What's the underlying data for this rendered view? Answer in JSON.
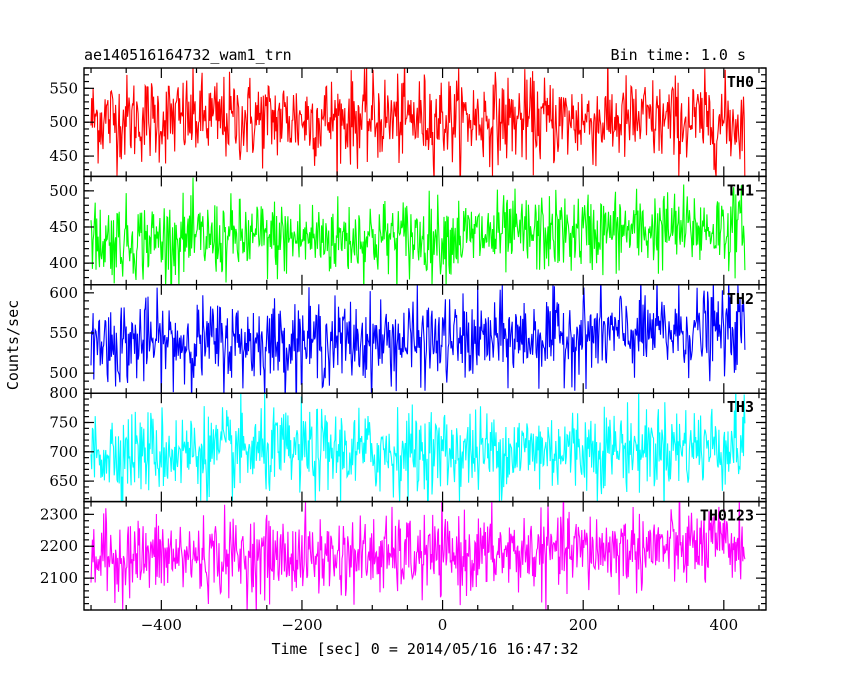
{
  "header": {
    "title": "ae140516164732_wam1_trn",
    "bin_time": "Bin time: 1.0 s"
  },
  "chart_data": {
    "type": "line",
    "xlabel": "Time [sec] 0 = 2014/05/16 16:47:32",
    "ylabel": "Counts/sec",
    "xlim": [
      -510,
      460
    ],
    "data_x_range": [
      -500,
      430
    ],
    "x_ticks": [
      -400,
      -200,
      0,
      200,
      400
    ],
    "grid": false,
    "legend": "none",
    "panels": [
      {
        "name": "TH0",
        "color": "#ff0000",
        "ylim": [
          420,
          580
        ],
        "y_ticks": [
          450,
          500,
          550
        ],
        "mean": [
          [
            -500,
            505
          ],
          [
            0,
            505
          ],
          [
            430,
            500
          ]
        ],
        "spread": 32
      },
      {
        "name": "TH1",
        "color": "#00ff00",
        "ylim": [
          370,
          520
        ],
        "y_ticks": [
          400,
          450,
          500
        ],
        "mean": [
          [
            -500,
            432
          ],
          [
            0,
            436
          ],
          [
            430,
            450
          ]
        ],
        "spread": 27
      },
      {
        "name": "TH2",
        "color": "#0000ff",
        "ylim": [
          475,
          610
        ],
        "y_ticks": [
          500,
          550,
          600
        ],
        "mean": [
          [
            -500,
            538
          ],
          [
            0,
            540
          ],
          [
            430,
            555
          ]
        ],
        "spread": 26
      },
      {
        "name": "TH3",
        "color": "#00ffff",
        "ylim": [
          615,
          800
        ],
        "y_ticks": [
          650,
          700,
          750,
          800
        ],
        "mean": [
          [
            -500,
            700
          ],
          [
            0,
            700
          ],
          [
            430,
            712
          ]
        ],
        "spread": 36
      },
      {
        "name": "TH0123",
        "color": "#ff00ff",
        "ylim": [
          2000,
          2340
        ],
        "y_ticks": [
          2100,
          2200,
          2300
        ],
        "mean": [
          [
            -500,
            2165
          ],
          [
            0,
            2170
          ],
          [
            430,
            2205
          ]
        ],
        "spread": 62
      }
    ]
  }
}
